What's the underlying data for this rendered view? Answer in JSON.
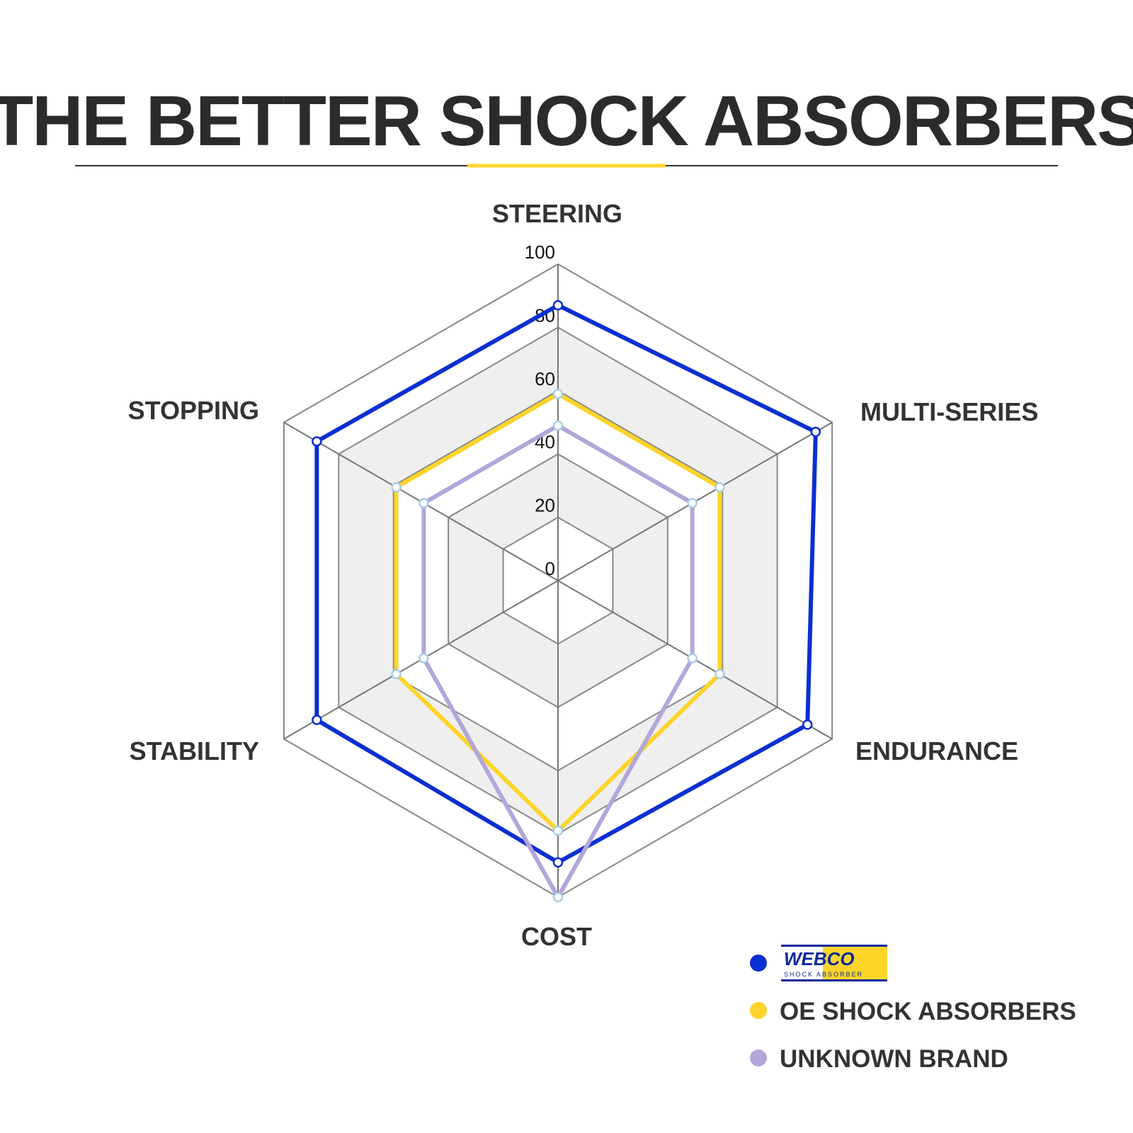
{
  "title": "THE BETTER SHOCK ABSORBERS",
  "chart_data": {
    "type": "radar",
    "categories": [
      "STEERING",
      "MULTI-SERIES",
      "ENDURANCE",
      "COST",
      "STABILITY",
      "STOPPING"
    ],
    "rlim": [
      0,
      100
    ],
    "ticks": [
      "0",
      "20",
      "40",
      "60",
      "80",
      "100"
    ],
    "grid": true,
    "legend": "bottom-right",
    "series": [
      {
        "name": "WEBCO SHOCK ABSORBER",
        "logo_text": "WEBCO",
        "logo_sub": "SHOCK ABSORBER",
        "color": "#0a2fd0",
        "values": [
          87,
          94,
          91,
          89,
          88,
          88
        ]
      },
      {
        "name": "OE SHOCK ABSORBERS",
        "color": "#fdd42a",
        "values": [
          59,
          59,
          59,
          79,
          59,
          59
        ]
      },
      {
        "name": "UNKNOWN BRAND",
        "color": "#b3a6da",
        "values": [
          49,
          49,
          49,
          100,
          49,
          49
        ]
      }
    ]
  },
  "colors": {
    "accent": "#fdd42a",
    "text": "#2b2b2b",
    "grid": "#888888",
    "band": "#efefef"
  }
}
